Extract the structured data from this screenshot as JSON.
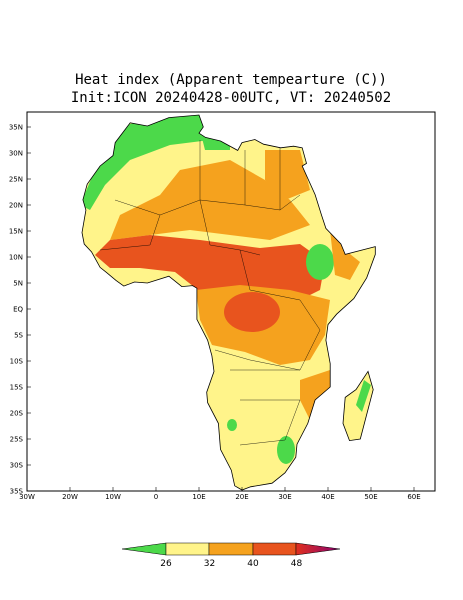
{
  "title": [
    "Heat index (Apparent tempearture (C))",
    "Init:ICON 20240428-00UTC, VT: 20240502"
  ],
  "map": {
    "lat_labels": [
      "35N",
      "30N",
      "25N",
      "20N",
      "15N",
      "10N",
      "5N",
      "EQ",
      "5S",
      "10S",
      "15S",
      "20S",
      "25S",
      "30S",
      "35S"
    ],
    "lon_labels": [
      "30W",
      "20W",
      "10W",
      "0",
      "10E",
      "20E",
      "30E",
      "40E",
      "50E",
      "60E"
    ]
  },
  "colorbar": {
    "labels": [
      "26",
      "32",
      "40",
      "48"
    ]
  }
}
